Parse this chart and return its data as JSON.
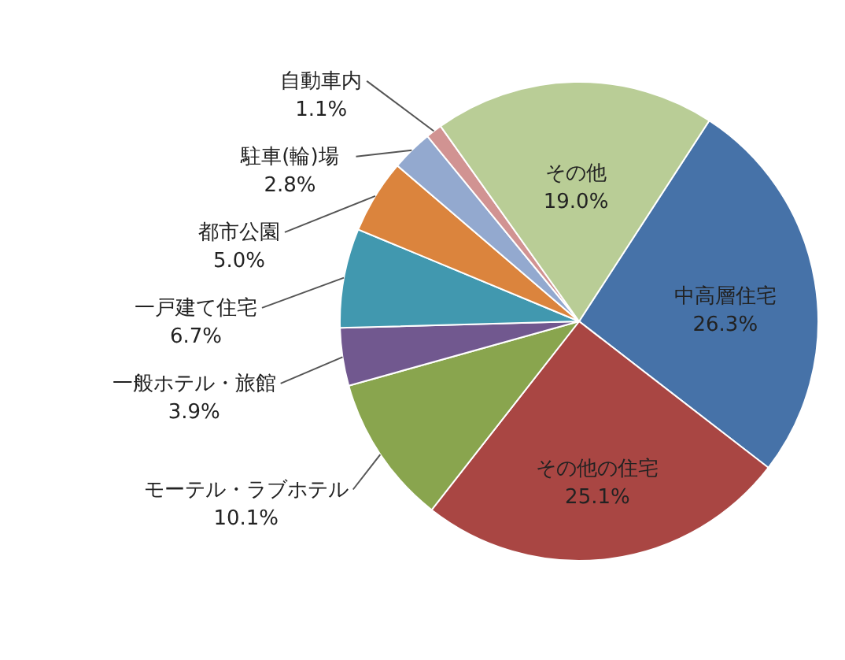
{
  "chart_data": {
    "type": "pie",
    "categories": [
      "中高層住宅",
      "その他の住宅",
      "モーテル・ラブホテル",
      "一般ホテル・旅館",
      "一戸建て住宅",
      "都市公園",
      "駐車(輪)場",
      "自動車内",
      "その他"
    ],
    "values": [
      26.3,
      25.1,
      10.1,
      3.9,
      6.7,
      5.0,
      2.8,
      1.1,
      19.0
    ],
    "value_labels": [
      "26.3%",
      "25.1%",
      "10.1%",
      "3.9%",
      "6.7%",
      "5.0%",
      "2.8%",
      "1.1%",
      "19.0%"
    ],
    "colors": [
      "#4672a8",
      "#a94643",
      "#89a54e",
      "#71588f",
      "#4198af",
      "#db843d",
      "#93a9cf",
      "#d19392",
      "#b9cd96"
    ]
  }
}
